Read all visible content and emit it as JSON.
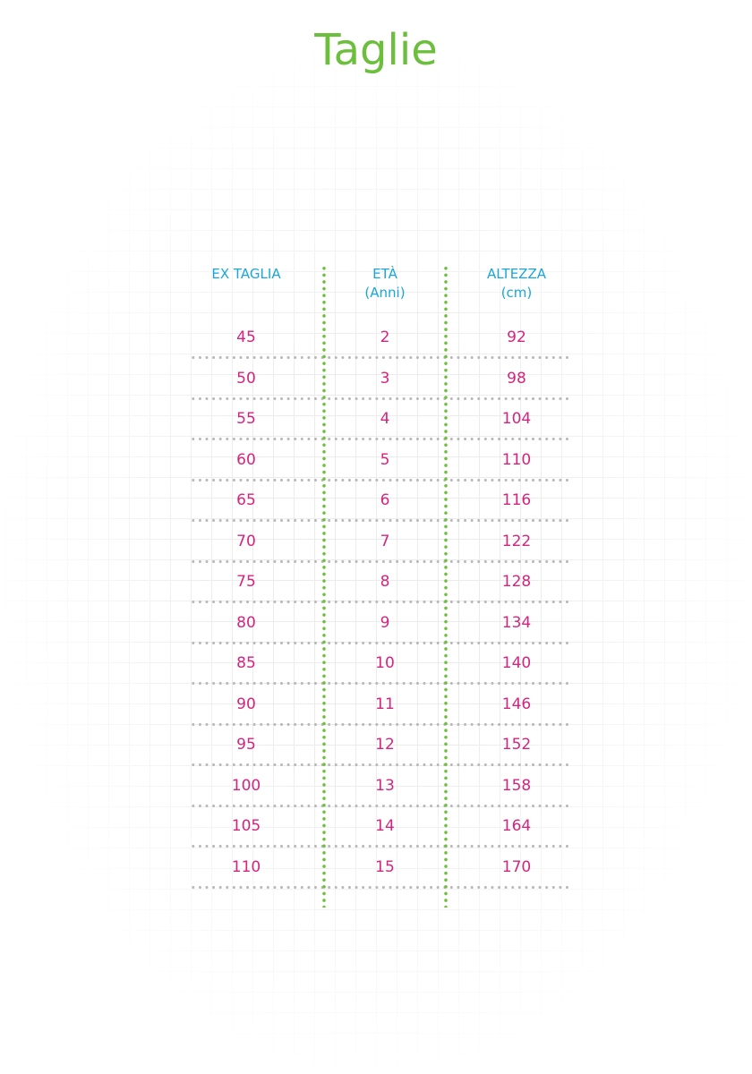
{
  "title": "Taglie",
  "colors": {
    "title": "#6cbf3d",
    "header": "#1aa6d9",
    "values": "#d6247e",
    "column_divider": "#6cbf3d",
    "row_divider": "#b8b8b8"
  },
  "table": {
    "headers": [
      {
        "line1": "EX TAGLIA",
        "line2": ""
      },
      {
        "line1": "ETÀ",
        "line2": "(Anni)"
      },
      {
        "line1": "ALTEZZA",
        "line2": "(cm)"
      }
    ],
    "rows": [
      [
        "45",
        "2",
        "92"
      ],
      [
        "50",
        "3",
        "98"
      ],
      [
        "55",
        "4",
        "104"
      ],
      [
        "60",
        "5",
        "110"
      ],
      [
        "65",
        "6",
        "116"
      ],
      [
        "70",
        "7",
        "122"
      ],
      [
        "75",
        "8",
        "128"
      ],
      [
        "80",
        "9",
        "134"
      ],
      [
        "85",
        "10",
        "140"
      ],
      [
        "90",
        "11",
        "146"
      ],
      [
        "95",
        "12",
        "152"
      ],
      [
        "100",
        "13",
        "158"
      ],
      [
        "105",
        "14",
        "164"
      ],
      [
        "110",
        "15",
        "170"
      ]
    ]
  }
}
